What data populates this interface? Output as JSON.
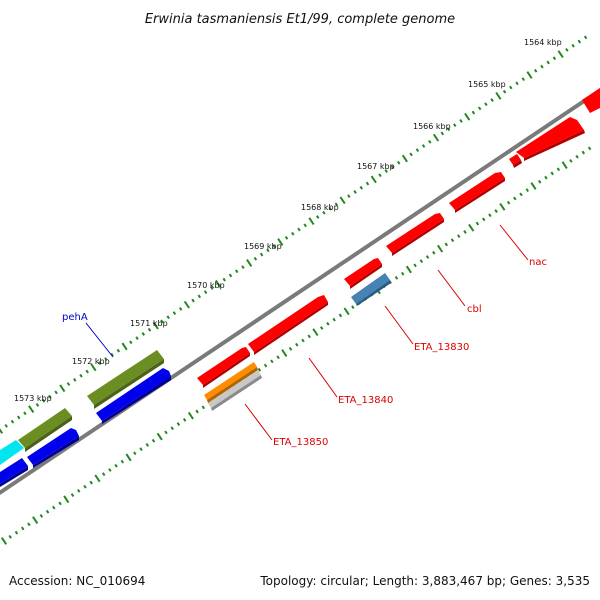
{
  "title": "Erwinia tasmaniensis Et1/99, complete genome",
  "accession": "Accession: NC_010694",
  "summary": "Topology: circular; Length: 3,883,467 bp; Genes: 3,535",
  "scale": {
    "ticks": [
      "1564 kbp",
      "1565 kbp",
      "1566 kbp",
      "1567 kbp",
      "1568 kbp",
      "1569 kbp",
      "1570 kbp",
      "1571 kbp",
      "1572 kbp",
      "1573 kbp"
    ]
  },
  "colors": {
    "backbone": "#808080",
    "tick": "#228822",
    "gene_red": "#ff0000",
    "gene_blue": "#0000ee",
    "gene_olive": "#6b8e23",
    "gene_cyan": "#00e5ee",
    "gene_steel": "#4682b4",
    "gene_orange": "#ff8c00",
    "gene_gray": "#bdbdbd",
    "label_red": "#dd0000",
    "label_blue": "#0000cc"
  },
  "gene_labels": [
    {
      "text": "nac",
      "color": "label_red"
    },
    {
      "text": "cbl",
      "color": "label_red"
    },
    {
      "text": "ETA_13830",
      "color": "label_red"
    },
    {
      "text": "ETA_13840",
      "color": "label_red"
    },
    {
      "text": "ETA_13850",
      "color": "label_red"
    },
    {
      "text": "pehA",
      "color": "label_blue"
    }
  ]
}
